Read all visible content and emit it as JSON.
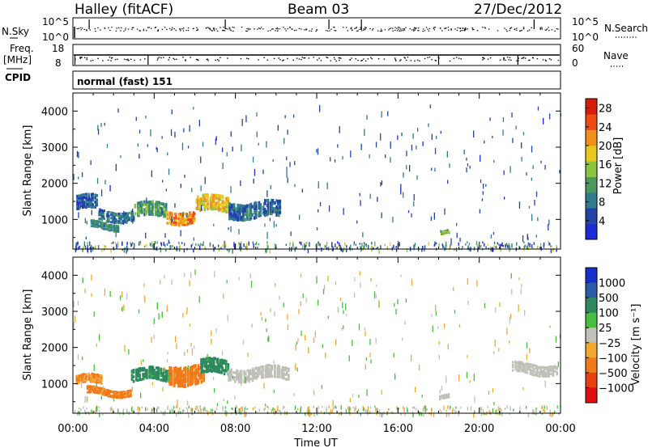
{
  "header": {
    "station": "Halley (fitACF)",
    "beam": "Beam 03",
    "date": "27/Dec/2012"
  },
  "param_panels": {
    "nsky_label": "N.Sky",
    "nsearch_label": "N.Search",
    "nsky_ticks": [
      "10^5",
      "10^0"
    ],
    "nsearch_ticks": [
      "10^5",
      "10^0"
    ],
    "freq_label": "Freq.",
    "freq_unit": "[MHz]",
    "freq_ticks": [
      "18",
      "8"
    ],
    "nave_label": "Nave",
    "nave_ticks": [
      "60",
      "0"
    ],
    "cpid_label": "CPID",
    "cpid_value": "normal (fast) 151"
  },
  "chart_data": [
    {
      "type": "heatmap",
      "name": "power",
      "ylabel": "Slant Range [km]",
      "xlabel": "",
      "xlim": [
        "00:00",
        "24:00"
      ],
      "ylim": [
        180,
        4500
      ],
      "y_ticks": [
        1000,
        2000,
        3000,
        4000
      ],
      "colorbar": {
        "label": "Power [dB]",
        "range": [
          0,
          30
        ],
        "ticks": [
          "4",
          "8",
          "12",
          "16",
          "20",
          "24",
          "28"
        ],
        "colors": [
          "#1c2ad8",
          "#2244a8",
          "#2e7b8e",
          "#4a9a5c",
          "#8cc440",
          "#e8c81c",
          "#f2901c",
          "#ef4c14",
          "#d81c0c"
        ]
      },
      "echo_regions": [
        {
          "t0": 0.1,
          "t1": 1.2,
          "r0": 1300,
          "r1": 1700,
          "value": 6
        },
        {
          "t0": 1.2,
          "t1": 3.0,
          "r0": 1000,
          "r1": 1300,
          "value": 8
        },
        {
          "t0": 3.0,
          "t1": 4.6,
          "r0": 1100,
          "r1": 1500,
          "value": 12
        },
        {
          "t0": 4.6,
          "t1": 6.0,
          "r0": 950,
          "r1": 1300,
          "value": 22
        },
        {
          "t0": 6.0,
          "t1": 7.6,
          "r0": 1250,
          "r1": 1700,
          "value": 18
        },
        {
          "t0": 7.6,
          "t1": 10.2,
          "r0": 1100,
          "r1": 1550,
          "value": 7
        },
        {
          "t0": 0.8,
          "t1": 2.2,
          "r0": 750,
          "r1": 950,
          "value": 10
        },
        {
          "t0": 18.1,
          "t1": 18.5,
          "r0": 560,
          "r1": 680,
          "value": 14
        }
      ]
    },
    {
      "type": "heatmap",
      "name": "velocity",
      "ylabel": "Slant Range [km]",
      "xlabel": "Time UT",
      "x_ticks": [
        "00:00",
        "04:00",
        "08:00",
        "12:00",
        "16:00",
        "20:00",
        "00:00"
      ],
      "ylim": [
        180,
        4500
      ],
      "y_ticks": [
        1000,
        2000,
        3000,
        4000
      ],
      "colorbar": {
        "label": "Velocity [m s⁻¹]",
        "ticks": [
          "1000",
          "500",
          "100",
          "25",
          "−25",
          "−100",
          "−500",
          "−1000"
        ],
        "colors": [
          "#1830c8",
          "#2a5aa8",
          "#2e8a5e",
          "#46c03c",
          "#c0c0b8",
          "#f2a830",
          "#f07a18",
          "#e84010",
          "#e01010"
        ]
      },
      "echo_regions": [
        {
          "t0": 0.1,
          "t1": 1.4,
          "r0": 1000,
          "r1": 1250,
          "value": -120
        },
        {
          "t0": 0.6,
          "t1": 2.8,
          "r0": 700,
          "r1": 900,
          "value": -150
        },
        {
          "t0": 2.8,
          "t1": 4.8,
          "r0": 1100,
          "r1": 1450,
          "value": 150
        },
        {
          "t0": 4.6,
          "t1": 6.4,
          "r0": 1050,
          "r1": 1600,
          "value": -300
        },
        {
          "t0": 6.2,
          "t1": 7.6,
          "r0": 1300,
          "r1": 1700,
          "value": 180
        },
        {
          "t0": 7.6,
          "t1": 10.6,
          "r0": 1150,
          "r1": 1500,
          "value": 0
        },
        {
          "t0": 21.6,
          "t1": 23.8,
          "r0": 1300,
          "r1": 1600,
          "value": 0
        },
        {
          "t0": 18.0,
          "t1": 18.5,
          "r0": 560,
          "r1": 680,
          "value": 0
        }
      ]
    }
  ]
}
